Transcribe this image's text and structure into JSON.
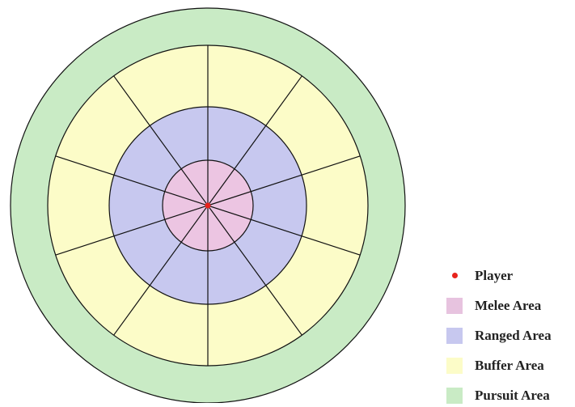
{
  "diagram": {
    "rings": [
      {
        "name": "pursuit",
        "color": "#c9ebc5"
      },
      {
        "name": "buffer",
        "color": "#fcfcc8"
      },
      {
        "name": "ranged",
        "color": "#c7c8ef"
      },
      {
        "name": "melee",
        "color": "#ecc5e2"
      }
    ],
    "sector_count": 10,
    "player_color": "#e8231c",
    "line_color": "#111111"
  },
  "legend": {
    "items": [
      {
        "label": "Player",
        "color": "#e8231c",
        "marker": "dot"
      },
      {
        "label": "Melee Area",
        "color": "#e7c3df",
        "marker": "square"
      },
      {
        "label": "Ranged Area",
        "color": "#c7c8ef",
        "marker": "square"
      },
      {
        "label": "Buffer Area",
        "color": "#fcfcc8",
        "marker": "square"
      },
      {
        "label": "Pursuit Area",
        "color": "#c9ebc5",
        "marker": "square"
      }
    ]
  }
}
